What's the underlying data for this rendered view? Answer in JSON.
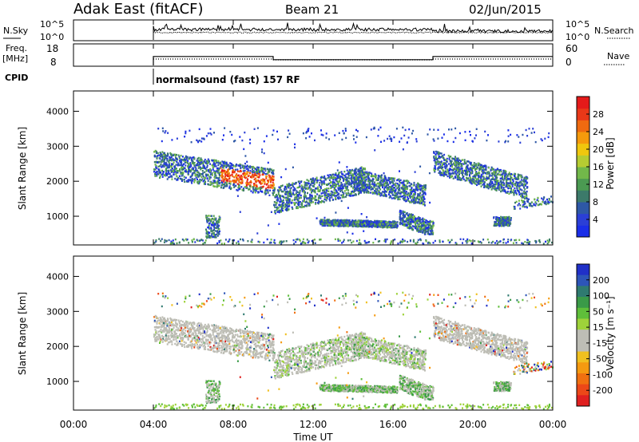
{
  "header": {
    "radar": "Adak East (fitACF)",
    "beam": "Beam 21",
    "date": "02/Jun/2015"
  },
  "aux_labels": {
    "nsky": "N.Sky",
    "nsearch": "N.Search",
    "freq": "Freq.",
    "mhz": "[MHz]",
    "nave": "Nave",
    "cpid": "CPID",
    "cpid_value": "normalsound (fast) 157 RF"
  },
  "colors": {
    "frame": "#000000",
    "ground_scatter": "#bdbdb5"
  },
  "chart_data": [
    {
      "type": "line",
      "name": "noise",
      "left_ticks": [
        "10^5",
        "10^0"
      ],
      "right_ticks": [
        "10^5",
        "10^0"
      ],
      "start_x": "04:00"
    },
    {
      "type": "line",
      "name": "frequency",
      "left_ticks": [
        "18",
        "8"
      ],
      "right_ticks": [
        "60",
        "0"
      ],
      "series": [
        {
          "x": [
            "04:00",
            "10:00",
            "10:00",
            "18:00",
            "18:00",
            "24:00"
          ],
          "values": [
            13.6,
            13.6,
            11.6,
            11.6,
            13.6,
            13.6
          ]
        }
      ]
    },
    {
      "type": "heatmap",
      "name": "power",
      "ylabel": "Slant Range [km]",
      "yticks": [
        1000,
        2000,
        3000,
        4000
      ],
      "ylim": [
        180,
        4580
      ],
      "xlim": [
        0,
        24
      ],
      "colorbar": {
        "label": "Power [dB]",
        "ticks": [
          "4",
          "8",
          "12",
          "16",
          "20",
          "24",
          "28"
        ],
        "colors": [
          "#1a2ee8",
          "#2b3fd6",
          "#2e58a6",
          "#3c7a6a",
          "#4b9a52",
          "#72b84a",
          "#b6cc32",
          "#f0c70e",
          "#f59a0c",
          "#ef6a10",
          "#e93818",
          "#e51a1a"
        ]
      }
    },
    {
      "type": "heatmap",
      "name": "velocity",
      "ylabel": "Slant Range [km]",
      "yticks": [
        1000,
        2000,
        3000,
        4000
      ],
      "ylim": [
        180,
        4580
      ],
      "xlim": [
        0,
        24
      ],
      "colorbar": {
        "label": "Velocity [m s⁻¹]",
        "ticks": [
          "200",
          "100",
          "50",
          "15",
          "-15",
          "-50",
          "-100",
          "-200"
        ],
        "colors": [
          "#2030c8",
          "#2d55b8",
          "#2f7a70",
          "#3a9a48",
          "#5fbf3a",
          "#9ed23a",
          "#bdbdb5",
          "#bdbdb5",
          "#f0c020",
          "#f59a10",
          "#f07010",
          "#ec4818",
          "#e02020"
        ]
      }
    }
  ],
  "xaxis": {
    "ticks": [
      "00:00",
      "04:00",
      "08:00",
      "12:00",
      "16:00",
      "20:00",
      "00:00"
    ],
    "label": "Time UT"
  }
}
